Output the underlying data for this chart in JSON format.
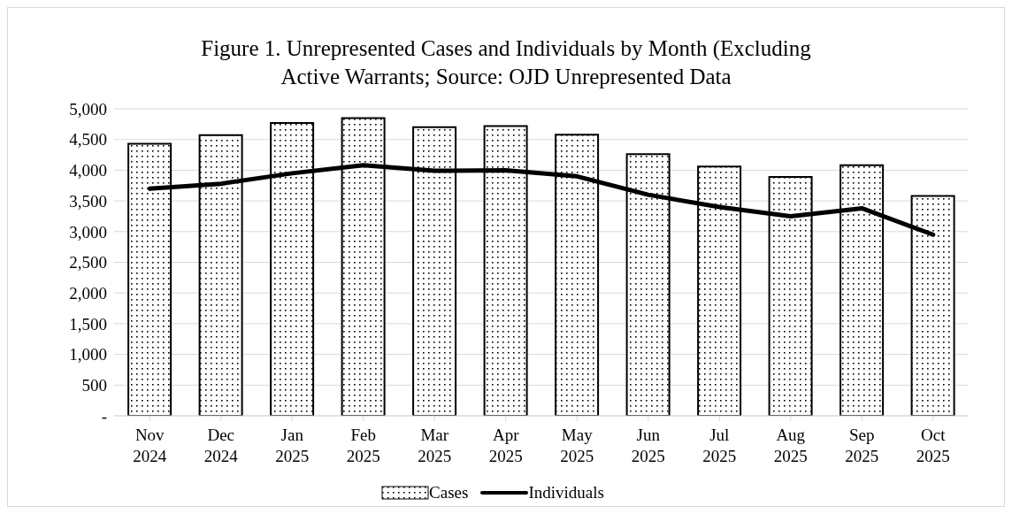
{
  "chart_data": {
    "type": "bar",
    "title": "Figure 1. Unrepresented Cases and Individuals by Month (Excluding Active Warrants; Source: OJD Unrepresented Data",
    "categories": [
      "Nov 2024",
      "Dec 2024",
      "Jan 2025",
      "Feb 2025",
      "Mar 2025",
      "Apr 2025",
      "May 2025",
      "Jun 2025",
      "Jul 2025",
      "Aug 2025",
      "Sep 2025",
      "Oct 2025"
    ],
    "series": [
      {
        "name": "Cases",
        "color": "#000000",
        "values": [
          4430,
          4570,
          4770,
          4850,
          4700,
          4720,
          4580,
          4260,
          4060,
          3890,
          4080,
          3580
        ]
      },
      {
        "name": "Individuals",
        "type": "line",
        "color": "#000000",
        "values": [
          3700,
          3780,
          3950,
          4080,
          3990,
          4000,
          3900,
          3600,
          3400,
          3250,
          3380,
          2950
        ]
      }
    ],
    "ylim": [
      0,
      5000
    ],
    "yticks": [
      {
        "value": 0,
        "label": "-"
      },
      {
        "value": 500,
        "label": "500"
      },
      {
        "value": 1000,
        "label": "1,000"
      },
      {
        "value": 1500,
        "label": "1,500"
      },
      {
        "value": 2000,
        "label": "2,000"
      },
      {
        "value": 2500,
        "label": "2,500"
      },
      {
        "value": 3000,
        "label": "3,000"
      },
      {
        "value": 3500,
        "label": "3,500"
      },
      {
        "value": 4000,
        "label": "4,000"
      },
      {
        "value": 4500,
        "label": "4,500"
      },
      {
        "value": 5000,
        "label": "5,000"
      }
    ],
    "grid": "y",
    "legend": "bottom",
    "marker": "none",
    "line_style": "solid"
  }
}
